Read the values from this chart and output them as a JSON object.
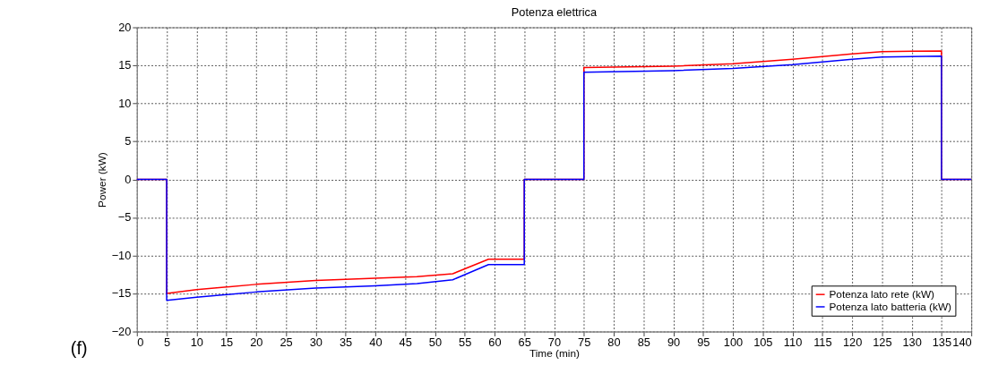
{
  "chart_data": {
    "type": "line",
    "title": "Potenza elettrica",
    "xlabel": "Time (min)",
    "ylabel": "Power (kW)",
    "xlim": [
      0,
      140
    ],
    "ylim": [
      -20,
      20
    ],
    "xticks": [
      0,
      5,
      10,
      15,
      20,
      25,
      30,
      35,
      40,
      45,
      50,
      55,
      60,
      65,
      70,
      75,
      80,
      85,
      90,
      95,
      100,
      105,
      110,
      115,
      120,
      125,
      130,
      135,
      140
    ],
    "yticks": [
      -20,
      -15,
      -10,
      -5,
      0,
      5,
      10,
      15,
      20
    ],
    "grid": true,
    "legend": "bottom right",
    "line_style": "solid",
    "marker": "none",
    "annotations": [
      "(f)"
    ],
    "series": [
      {
        "name": "Potenza lato rete (kW)",
        "color": "#ff0000",
        "x": [
          0,
          5,
          5,
          10,
          20,
          30,
          40,
          47,
          53,
          59,
          65,
          65,
          75,
          75,
          90,
          100,
          110,
          120,
          125,
          135,
          135,
          140
        ],
        "values": [
          0,
          0,
          -15,
          -14.5,
          -13.8,
          -13.3,
          -13,
          -12.8,
          -12.4,
          -10.5,
          -10.5,
          0,
          0,
          14.7,
          14.9,
          15.2,
          15.8,
          16.5,
          16.8,
          16.9,
          0,
          0
        ]
      },
      {
        "name": "Potenza lato batteria (kW)",
        "color": "#0000ff",
        "x": [
          0,
          5,
          5,
          10,
          20,
          30,
          40,
          47,
          53,
          59,
          65,
          65,
          75,
          75,
          90,
          100,
          110,
          120,
          125,
          135,
          135,
          140
        ],
        "values": [
          0,
          0,
          -15.9,
          -15.5,
          -14.8,
          -14.3,
          -14,
          -13.7,
          -13.2,
          -11.2,
          -11.2,
          0,
          0,
          14.1,
          14.3,
          14.6,
          15.1,
          15.8,
          16.1,
          16.2,
          0,
          0
        ]
      }
    ]
  }
}
